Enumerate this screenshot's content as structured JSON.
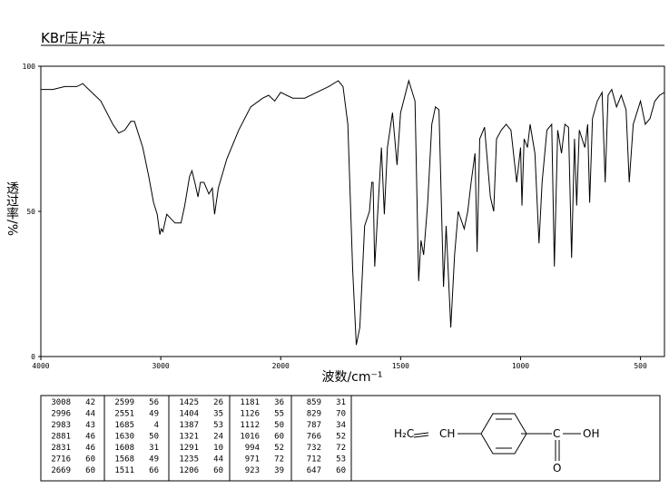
{
  "chart_data": {
    "type": "line",
    "title": "KBr压片法",
    "xlabel": "波数/cm⁻¹",
    "ylabel": "透过率/%",
    "xlim": [
      4000,
      400
    ],
    "xbreak": 2000,
    "xbreak_scale": 2,
    "xticks": [
      4000,
      3000,
      2000,
      1500,
      1000,
      500
    ],
    "ylim": [
      0,
      100
    ],
    "yticks": [
      0,
      50,
      100
    ],
    "grid": false,
    "x": [
      4000,
      3900,
      3800,
      3700,
      3650,
      3600,
      3500,
      3400,
      3350,
      3300,
      3250,
      3220,
      3150,
      3100,
      3060,
      3030,
      3008,
      2996,
      2983,
      2950,
      2881,
      2831,
      2800,
      2760,
      2740,
      2716,
      2690,
      2669,
      2640,
      2599,
      2570,
      2551,
      2520,
      2450,
      2350,
      2250,
      2150,
      2100,
      2050,
      2000,
      1950,
      1900,
      1850,
      1800,
      1760,
      1740,
      1720,
      1700,
      1685,
      1670,
      1650,
      1630,
      1620,
      1615,
      1608,
      1595,
      1580,
      1568,
      1555,
      1534,
      1515,
      1500,
      1466,
      1440,
      1425,
      1415,
      1404,
      1387,
      1370,
      1355,
      1340,
      1321,
      1310,
      1291,
      1275,
      1260,
      1235,
      1220,
      1206,
      1190,
      1181,
      1170,
      1150,
      1126,
      1112,
      1100,
      1080,
      1060,
      1040,
      1016,
      1000,
      994,
      985,
      971,
      960,
      940,
      923,
      910,
      890,
      870,
      859,
      845,
      829,
      815,
      800,
      787,
      775,
      766,
      755,
      732,
      720,
      712,
      700,
      680,
      660,
      647,
      635,
      620,
      600,
      580,
      560,
      547,
      530,
      500,
      480,
      460,
      440,
      420,
      400
    ],
    "series": [
      {
        "name": "KBr",
        "color": "#000000",
        "values": [
          92,
          92,
          93,
          93,
          94,
          92,
          88,
          80,
          77,
          78,
          81,
          81,
          72,
          62,
          53,
          49,
          42,
          44,
          43,
          49,
          46,
          46,
          52,
          62,
          64,
          60,
          55,
          60,
          60,
          56,
          58,
          49,
          58,
          68,
          78,
          86,
          89,
          90,
          88,
          91,
          89,
          89,
          91,
          93,
          95,
          93,
          80,
          30,
          4,
          10,
          45,
          50,
          60,
          60,
          31,
          50,
          72,
          49,
          72,
          84,
          66,
          84,
          95,
          88,
          26,
          40,
          35,
          53,
          80,
          86,
          85,
          24,
          45,
          10,
          35,
          50,
          44,
          50,
          60,
          70,
          36,
          75,
          79,
          55,
          50,
          75,
          78,
          80,
          78,
          60,
          72,
          52,
          75,
          72,
          80,
          70,
          39,
          60,
          78,
          80,
          31,
          78,
          70,
          80,
          79,
          34,
          75,
          52,
          78,
          72,
          80,
          53,
          82,
          88,
          91,
          60,
          90,
          92,
          86,
          90,
          85,
          60,
          80,
          88,
          80,
          82,
          88,
          90,
          91
        ]
      }
    ]
  },
  "peak_table": {
    "columns": [
      [
        [
          "3008",
          "42"
        ],
        [
          "2996",
          "44"
        ],
        [
          "2983",
          "43"
        ],
        [
          "2881",
          "46"
        ],
        [
          "2831",
          "46"
        ],
        [
          "2716",
          "60"
        ],
        [
          "2669",
          "60"
        ]
      ],
      [
        [
          "2599",
          "56"
        ],
        [
          "2551",
          "49"
        ],
        [
          "1685",
          "4"
        ],
        [
          "1630",
          "50"
        ],
        [
          "1608",
          "31"
        ],
        [
          "1568",
          "49"
        ],
        [
          "1511",
          "66"
        ]
      ],
      [
        [
          "1425",
          "26"
        ],
        [
          "1404",
          "35"
        ],
        [
          "1387",
          "53"
        ],
        [
          "1321",
          "24"
        ],
        [
          "1291",
          "10"
        ],
        [
          "1235",
          "44"
        ],
        [
          "1206",
          "60"
        ]
      ],
      [
        [
          "1181",
          "36"
        ],
        [
          "1126",
          "55"
        ],
        [
          "1112",
          "50"
        ],
        [
          "1016",
          "60"
        ],
        [
          "994",
          "52"
        ],
        [
          "971",
          "72"
        ],
        [
          "923",
          "39"
        ]
      ],
      [
        [
          "859",
          "31"
        ],
        [
          "829",
          "70"
        ],
        [
          "787",
          "34"
        ],
        [
          "766",
          "52"
        ],
        [
          "732",
          "72"
        ],
        [
          "712",
          "53"
        ],
        [
          "647",
          "60"
        ]
      ]
    ]
  },
  "structure": {
    "labels": [
      "H₂C",
      "CH",
      "C",
      "OH",
      "O"
    ]
  }
}
